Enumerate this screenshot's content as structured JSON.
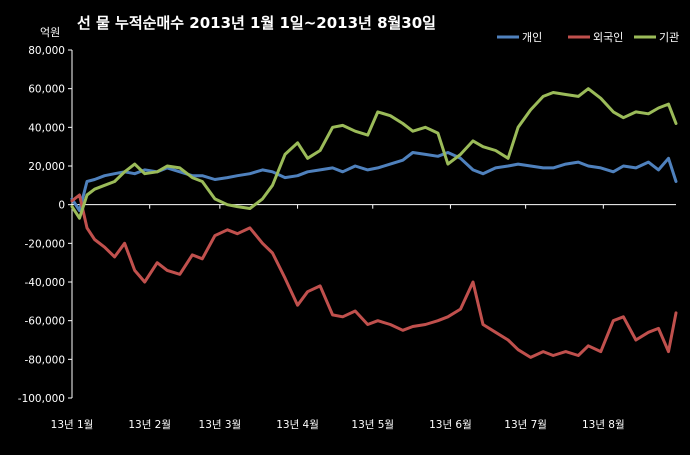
{
  "chart_data": {
    "type": "line",
    "title": "선 물 누적순매수 2013년 1월 1일~2013년 8월30일",
    "unit_label": "억원",
    "ylim": [
      -100000,
      80000
    ],
    "yticks": [
      "80,000",
      "60,000",
      "40,000",
      "20,000",
      "0",
      "-20,000",
      "-40,000",
      "-60,000",
      "-80,000",
      "-100,000"
    ],
    "ytick_values": [
      80000,
      60000,
      40000,
      20000,
      0,
      -20000,
      -40000,
      -60000,
      -80000,
      -100000
    ],
    "x_start": "2013-01-01",
    "x_end": "2013-08-30",
    "xticks": [
      {
        "label": "13년 1월",
        "date": "2013-01-01"
      },
      {
        "label": "13년 2월",
        "date": "2013-02-01"
      },
      {
        "label": "13년 3월",
        "date": "2013-03-01"
      },
      {
        "label": "13년 4월",
        "date": "2013-04-01"
      },
      {
        "label": "13년 5월",
        "date": "2013-05-01"
      },
      {
        "label": "13년 6월",
        "date": "2013-06-01"
      },
      {
        "label": "13년 7월",
        "date": "2013-07-01"
      },
      {
        "label": "13년 8월",
        "date": "2013-08-01"
      }
    ],
    "legend_position": "top-right",
    "grid": false,
    "series": [
      {
        "name": "개인",
        "color": "#4f81bd",
        "x": [
          "2013-01-01",
          "2013-01-04",
          "2013-01-07",
          "2013-01-10",
          "2013-01-14",
          "2013-01-18",
          "2013-01-22",
          "2013-01-26",
          "2013-01-30",
          "2013-02-04",
          "2013-02-08",
          "2013-02-13",
          "2013-02-18",
          "2013-02-22",
          "2013-02-27",
          "2013-03-04",
          "2013-03-08",
          "2013-03-13",
          "2013-03-18",
          "2013-03-22",
          "2013-03-27",
          "2013-04-01",
          "2013-04-05",
          "2013-04-10",
          "2013-04-15",
          "2013-04-19",
          "2013-04-24",
          "2013-04-29",
          "2013-05-03",
          "2013-05-08",
          "2013-05-13",
          "2013-05-17",
          "2013-05-22",
          "2013-05-27",
          "2013-05-31",
          "2013-06-05",
          "2013-06-10",
          "2013-06-14",
          "2013-06-19",
          "2013-06-24",
          "2013-06-28",
          "2013-07-03",
          "2013-07-08",
          "2013-07-12",
          "2013-07-17",
          "2013-07-22",
          "2013-07-26",
          "2013-07-31",
          "2013-08-05",
          "2013-08-09",
          "2013-08-14",
          "2013-08-19",
          "2013-08-23",
          "2013-08-27",
          "2013-08-30"
        ],
        "y": [
          3000,
          -3000,
          12000,
          13000,
          15000,
          16000,
          17000,
          16000,
          18000,
          17000,
          19000,
          17000,
          15000,
          15000,
          13000,
          14000,
          15000,
          16000,
          18000,
          17000,
          14000,
          15000,
          17000,
          18000,
          19000,
          17000,
          20000,
          18000,
          19000,
          21000,
          23000,
          27000,
          26000,
          25000,
          27000,
          24000,
          18000,
          16000,
          19000,
          20000,
          21000,
          20000,
          19000,
          19000,
          21000,
          22000,
          20000,
          19000,
          17000,
          20000,
          19000,
          22000,
          18000,
          24000,
          12000
        ]
      },
      {
        "name": "외국인",
        "color": "#c0504d",
        "x": [
          "2013-01-01",
          "2013-01-04",
          "2013-01-07",
          "2013-01-10",
          "2013-01-14",
          "2013-01-18",
          "2013-01-22",
          "2013-01-26",
          "2013-01-30",
          "2013-02-04",
          "2013-02-08",
          "2013-02-13",
          "2013-02-18",
          "2013-02-22",
          "2013-02-27",
          "2013-03-04",
          "2013-03-08",
          "2013-03-13",
          "2013-03-18",
          "2013-03-22",
          "2013-03-27",
          "2013-04-01",
          "2013-04-05",
          "2013-04-10",
          "2013-04-15",
          "2013-04-19",
          "2013-04-24",
          "2013-04-29",
          "2013-05-03",
          "2013-05-08",
          "2013-05-13",
          "2013-05-17",
          "2013-05-22",
          "2013-05-27",
          "2013-05-31",
          "2013-06-05",
          "2013-06-10",
          "2013-06-14",
          "2013-06-19",
          "2013-06-24",
          "2013-06-28",
          "2013-07-03",
          "2013-07-08",
          "2013-07-12",
          "2013-07-17",
          "2013-07-22",
          "2013-07-26",
          "2013-07-31",
          "2013-08-05",
          "2013-08-09",
          "2013-08-14",
          "2013-08-19",
          "2013-08-23",
          "2013-08-27",
          "2013-08-30"
        ],
        "y": [
          2000,
          5000,
          -12000,
          -18000,
          -22000,
          -27000,
          -20000,
          -34000,
          -40000,
          -30000,
          -34000,
          -36000,
          -26000,
          -28000,
          -16000,
          -13000,
          -15000,
          -12000,
          -20000,
          -25000,
          -38000,
          -52000,
          -45000,
          -42000,
          -57000,
          -58000,
          -55000,
          -62000,
          -60000,
          -62000,
          -65000,
          -63000,
          -62000,
          -60000,
          -58000,
          -54000,
          -40000,
          -62000,
          -66000,
          -70000,
          -75000,
          -79000,
          -76000,
          -78000,
          -76000,
          -78000,
          -73000,
          -76000,
          -60000,
          -58000,
          -70000,
          -66000,
          -64000,
          -76000,
          -56000
        ]
      },
      {
        "name": "기관",
        "color": "#9bbb59",
        "x": [
          "2013-01-01",
          "2013-01-04",
          "2013-01-07",
          "2013-01-10",
          "2013-01-14",
          "2013-01-18",
          "2013-01-22",
          "2013-01-26",
          "2013-01-30",
          "2013-02-04",
          "2013-02-08",
          "2013-02-13",
          "2013-02-18",
          "2013-02-22",
          "2013-02-27",
          "2013-03-04",
          "2013-03-08",
          "2013-03-13",
          "2013-03-18",
          "2013-03-22",
          "2013-03-27",
          "2013-04-01",
          "2013-04-05",
          "2013-04-10",
          "2013-04-15",
          "2013-04-19",
          "2013-04-24",
          "2013-04-29",
          "2013-05-03",
          "2013-05-08",
          "2013-05-13",
          "2013-05-17",
          "2013-05-22",
          "2013-05-27",
          "2013-05-31",
          "2013-06-05",
          "2013-06-10",
          "2013-06-14",
          "2013-06-19",
          "2013-06-24",
          "2013-06-28",
          "2013-07-03",
          "2013-07-08",
          "2013-07-12",
          "2013-07-17",
          "2013-07-22",
          "2013-07-26",
          "2013-07-31",
          "2013-08-05",
          "2013-08-09",
          "2013-08-14",
          "2013-08-19",
          "2013-08-23",
          "2013-08-27",
          "2013-08-30"
        ],
        "y": [
          -1000,
          -7000,
          5000,
          8000,
          10000,
          12000,
          17000,
          21000,
          16000,
          17000,
          20000,
          19000,
          14000,
          12000,
          3000,
          0,
          -1000,
          -2000,
          3000,
          10000,
          26000,
          32000,
          24000,
          28000,
          40000,
          41000,
          38000,
          36000,
          48000,
          46000,
          42000,
          38000,
          40000,
          37000,
          21000,
          26000,
          33000,
          30000,
          28000,
          24000,
          40000,
          49000,
          56000,
          58000,
          57000,
          56000,
          60000,
          55000,
          48000,
          45000,
          48000,
          47000,
          50000,
          52000,
          42000
        ]
      }
    ]
  }
}
